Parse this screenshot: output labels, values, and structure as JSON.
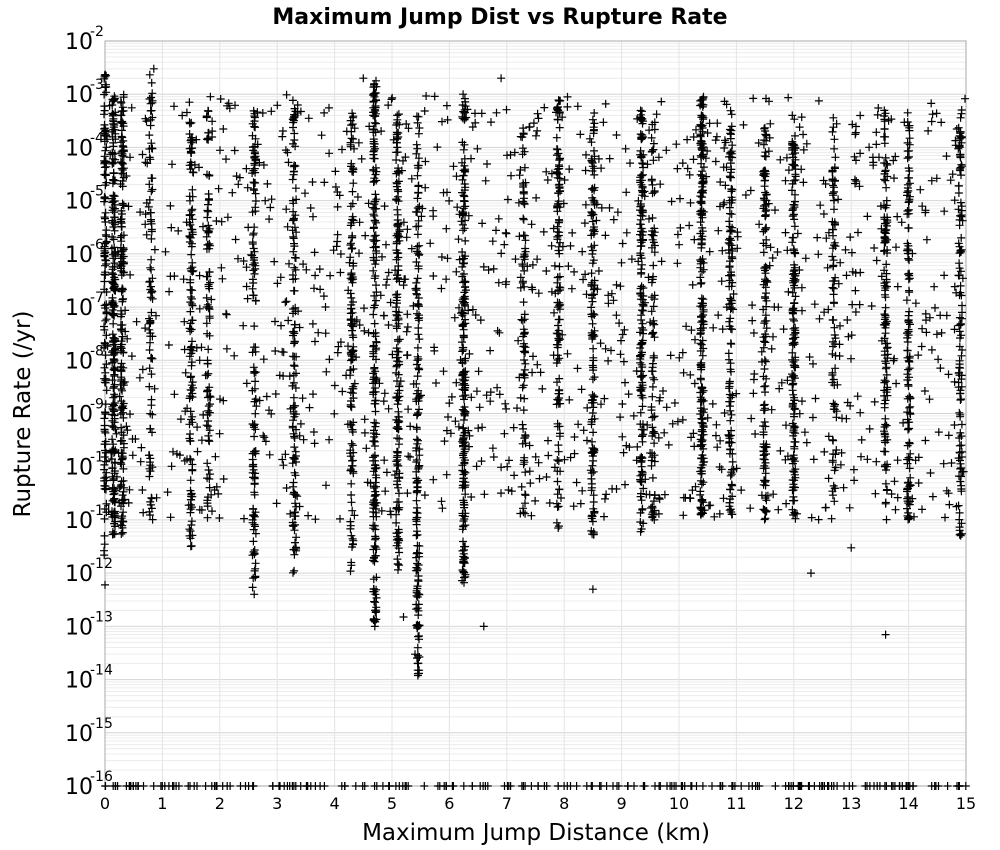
{
  "chart_data": {
    "type": "scatter",
    "title": "Maximum Jump Dist vs Rupture Rate",
    "xlabel": "Maximum Jump Distance (km)",
    "ylabel": "Rupture Rate (/yr)",
    "xlim": [
      0,
      15
    ],
    "ylim": [
      1e-16,
      0.01
    ],
    "yscale": "log",
    "grid": true,
    "marker": "+",
    "marker_color": "#000000",
    "x_ticks": [
      "0",
      "1",
      "2",
      "3",
      "4",
      "5",
      "6",
      "7",
      "8",
      "9",
      "10",
      "11",
      "12",
      "13",
      "14",
      "15"
    ],
    "y_ticks": [
      {
        "base": "10",
        "exp": "-2"
      },
      {
        "base": "10",
        "exp": "-3"
      },
      {
        "base": "10",
        "exp": "-4"
      },
      {
        "base": "10",
        "exp": "-5"
      },
      {
        "base": "10",
        "exp": "-6"
      },
      {
        "base": "10",
        "exp": "-7"
      },
      {
        "base": "10",
        "exp": "-8"
      },
      {
        "base": "10",
        "exp": "-9"
      },
      {
        "base": "10",
        "exp": "-10"
      },
      {
        "base": "10",
        "exp": "-11"
      },
      {
        "base": "10",
        "exp": "-12"
      },
      {
        "base": "10",
        "exp": "-13"
      },
      {
        "base": "10",
        "exp": "-14"
      },
      {
        "base": "10",
        "exp": "-15"
      },
      {
        "base": "10",
        "exp": "-16"
      }
    ],
    "columns": [
      {
        "x": 0.0,
        "ymin": 2e-12,
        "ymax": 0.003,
        "density": 4
      },
      {
        "x": 0.15,
        "ymin": 5e-12,
        "ymax": 0.001,
        "density": 5
      },
      {
        "x": 0.3,
        "ymin": 5e-12,
        "ymax": 0.001,
        "density": 4
      },
      {
        "x": 0.8,
        "ymin": 1e-11,
        "ymax": 0.003,
        "density": 2
      },
      {
        "x": 1.5,
        "ymin": 3e-12,
        "ymax": 0.0003,
        "density": 3
      },
      {
        "x": 1.8,
        "ymin": 1e-11,
        "ymax": 0.0005,
        "density": 2
      },
      {
        "x": 2.6,
        "ymin": 5e-13,
        "ymax": 0.0005,
        "density": 3
      },
      {
        "x": 3.3,
        "ymin": 1e-12,
        "ymax": 0.0008,
        "density": 3
      },
      {
        "x": 4.3,
        "ymin": 1e-12,
        "ymax": 0.0005,
        "density": 3
      },
      {
        "x": 4.7,
        "ymin": 1e-13,
        "ymax": 0.002,
        "density": 5
      },
      {
        "x": 5.1,
        "ymin": 1e-12,
        "ymax": 0.0005,
        "density": 4
      },
      {
        "x": 5.45,
        "ymin": 1e-14,
        "ymax": 0.0005,
        "density": 4
      },
      {
        "x": 6.25,
        "ymin": 5e-13,
        "ymax": 0.001,
        "density": 5
      },
      {
        "x": 7.3,
        "ymin": 1e-11,
        "ymax": 0.0005,
        "density": 2
      },
      {
        "x": 7.9,
        "ymin": 5e-12,
        "ymax": 0.001,
        "density": 3
      },
      {
        "x": 8.5,
        "ymin": 5e-12,
        "ymax": 0.0005,
        "density": 3
      },
      {
        "x": 9.35,
        "ymin": 5e-12,
        "ymax": 0.0005,
        "density": 4
      },
      {
        "x": 9.55,
        "ymin": 1e-11,
        "ymax": 0.0003,
        "density": 2
      },
      {
        "x": 10.4,
        "ymin": 1e-11,
        "ymax": 0.001,
        "density": 5
      },
      {
        "x": 10.9,
        "ymin": 1e-11,
        "ymax": 0.0005,
        "density": 3
      },
      {
        "x": 11.5,
        "ymin": 1e-11,
        "ymax": 0.0003,
        "density": 3
      },
      {
        "x": 12.0,
        "ymin": 1e-11,
        "ymax": 0.0005,
        "density": 4
      },
      {
        "x": 12.7,
        "ymin": 5e-12,
        "ymax": 0.0005,
        "density": 2
      },
      {
        "x": 13.6,
        "ymin": 1e-11,
        "ymax": 0.0005,
        "density": 3
      },
      {
        "x": 14.0,
        "ymin": 1e-11,
        "ymax": 0.0005,
        "density": 3
      },
      {
        "x": 14.9,
        "ymin": 5e-12,
        "ymax": 0.0005,
        "density": 3
      }
    ],
    "background_scatter": {
      "xmin": 0,
      "xmax": 15,
      "ymin": 1e-11,
      "ymax": 0.001,
      "count": 1200
    },
    "outliers": [
      {
        "x": 0.85,
        "y": 0.003
      },
      {
        "x": 4.5,
        "y": 0.002
      },
      {
        "x": 6.9,
        "y": 0.002
      },
      {
        "x": 4.7,
        "y": 1e-13
      },
      {
        "x": 5.2,
        "y": 1.5e-13
      },
      {
        "x": 6.6,
        "y": 1e-13
      },
      {
        "x": 5.4,
        "y": 3e-14
      },
      {
        "x": 5.45,
        "y": 1.5e-14
      },
      {
        "x": 13.6,
        "y": 7e-14
      },
      {
        "x": 2.6,
        "y": 4e-13
      },
      {
        "x": 8.5,
        "y": 5e-13
      },
      {
        "x": 12.3,
        "y": 1e-12
      },
      {
        "x": 13.0,
        "y": 3e-12
      },
      {
        "x": 0.0,
        "y": 6e-13
      }
    ],
    "floor_value": 1e-16,
    "floor_count": 220
  }
}
